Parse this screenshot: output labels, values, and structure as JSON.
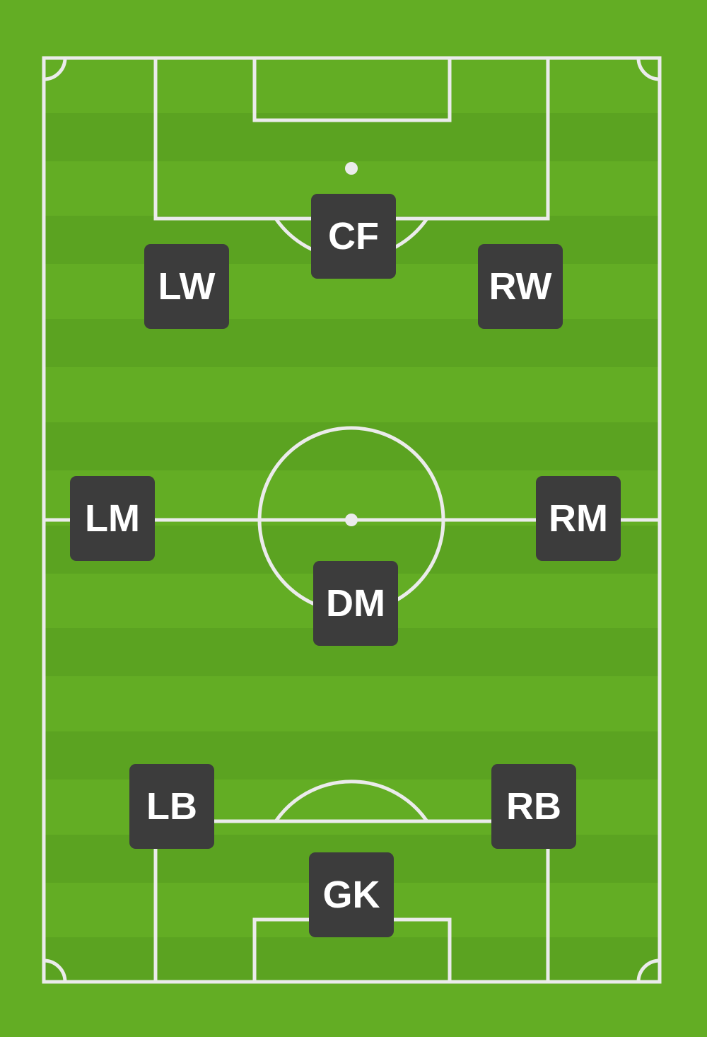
{
  "pitch": {
    "grass_color": "#63ad24",
    "stripe_color": "#5ba321",
    "line_color": "#ebebeb"
  },
  "players": {
    "cf": {
      "label": "CF"
    },
    "lw": {
      "label": "LW"
    },
    "rw": {
      "label": "RW"
    },
    "lm": {
      "label": "LM"
    },
    "rm": {
      "label": "RM"
    },
    "dm": {
      "label": "DM"
    },
    "lb": {
      "label": "LB"
    },
    "rb": {
      "label": "RB"
    },
    "gk": {
      "label": "GK"
    }
  },
  "token_color": "#3c3c3c"
}
